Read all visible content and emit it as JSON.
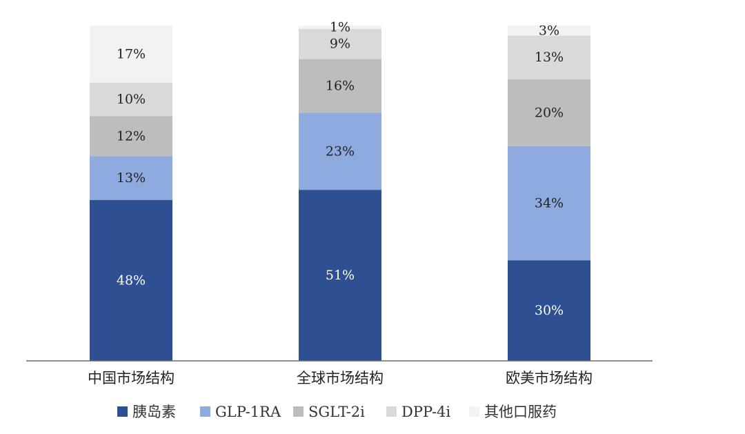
{
  "chart_data": {
    "type": "bar",
    "stacked": true,
    "title": "",
    "xlabel": "",
    "ylabel": "",
    "ylim": [
      0,
      100
    ],
    "grid": false,
    "legend_position": "bottom",
    "categories": [
      "中国市场结构",
      "全球市场结构",
      "欧美市场结构"
    ],
    "series": [
      {
        "name": "胰岛素",
        "color": "#2e4f91",
        "label_color": "#ffffff",
        "values": [
          48,
          51,
          30
        ],
        "labels": [
          "48%",
          "51%",
          "30%"
        ]
      },
      {
        "name": "GLP-1RA",
        "color": "#8eaadf",
        "label_color": "#222222",
        "values": [
          13,
          23,
          34
        ],
        "labels": [
          "13%",
          "23%",
          "34%"
        ]
      },
      {
        "name": "SGLT-2i",
        "color": "#bdbdbd",
        "label_color": "#222222",
        "values": [
          12,
          16,
          20
        ],
        "labels": [
          "12%",
          "16%",
          "20%"
        ]
      },
      {
        "name": "DPP-4i",
        "color": "#d9d9d9",
        "label_color": "#222222",
        "values": [
          10,
          9,
          13
        ],
        "labels": [
          "10%",
          "9%",
          "13%"
        ]
      },
      {
        "name": "其他口服药",
        "color": "#f2f2f2",
        "label_color": "#222222",
        "values": [
          17,
          1,
          3
        ],
        "labels": [
          "17%",
          "1%",
          "3%"
        ]
      }
    ]
  }
}
